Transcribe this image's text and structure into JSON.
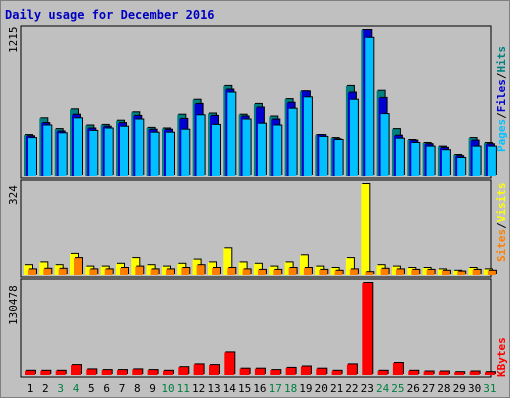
{
  "title": "Daily usage for December 2016",
  "colors": {
    "background": "#c0c0c0",
    "pages": "#00c0ff",
    "files": "#0000d0",
    "hits": "#008080",
    "visits": "#ffff00",
    "sites": "#ff8000",
    "kbytes": "#ff0000",
    "title": "#0000c0",
    "weekend_day": "#008040",
    "weekday_day": "#000000"
  },
  "legend": {
    "pages": "Pages",
    "files": "Files",
    "hits": "Hits",
    "visits": "Visits",
    "sites": "Sites",
    "kbytes": "KBytes",
    "sep": "/"
  },
  "chart_data": [
    {
      "type": "bar",
      "title": "Daily usage for December 2016",
      "ymax_label": "1215",
      "ylim": [
        0,
        1215
      ],
      "categories": [
        "1",
        "2",
        "3",
        "4",
        "5",
        "6",
        "7",
        "8",
        "9",
        "10",
        "11",
        "12",
        "13",
        "14",
        "15",
        "16",
        "17",
        "18",
        "19",
        "20",
        "21",
        "22",
        "23",
        "24",
        "25",
        "26",
        "27",
        "28",
        "29",
        "30",
        "31"
      ],
      "series": [
        {
          "name": "Hits",
          "values": [
            340,
            480,
            390,
            555,
            420,
            425,
            460,
            530,
            400,
            395,
            510,
            635,
            520,
            750,
            510,
            600,
            495,
            640,
            705,
            340,
            315,
            750,
            1215,
            710,
            390,
            300,
            275,
            245,
            175,
            315,
            275
          ]
        },
        {
          "name": "Files",
          "values": [
            330,
            440,
            370,
            510,
            395,
            410,
            440,
            500,
            385,
            385,
            475,
            600,
            500,
            720,
            495,
            570,
            470,
            610,
            705,
            340,
            305,
            695,
            1215,
            650,
            335,
            295,
            265,
            235,
            165,
            295,
            265
          ]
        },
        {
          "name": "Pages",
          "values": [
            315,
            420,
            355,
            480,
            375,
            395,
            410,
            470,
            360,
            360,
            385,
            505,
            425,
            695,
            470,
            435,
            420,
            560,
            655,
            325,
            300,
            635,
            1150,
            515,
            310,
            275,
            245,
            215,
            150,
            245,
            245
          ]
        }
      ],
      "ylabel": "Pages / Files / Hits"
    },
    {
      "type": "bar",
      "ymax_label": "324",
      "ylim": [
        0,
        324
      ],
      "categories": [
        "1",
        "2",
        "3",
        "4",
        "5",
        "6",
        "7",
        "8",
        "9",
        "10",
        "11",
        "12",
        "13",
        "14",
        "15",
        "16",
        "17",
        "18",
        "19",
        "20",
        "21",
        "22",
        "23",
        "24",
        "25",
        "26",
        "27",
        "28",
        "29",
        "30",
        "31"
      ],
      "series": [
        {
          "name": "Visits",
          "values": [
            35,
            45,
            35,
            75,
            30,
            30,
            40,
            60,
            35,
            30,
            40,
            55,
            45,
            95,
            45,
            40,
            30,
            45,
            70,
            30,
            25,
            60,
            324,
            35,
            30,
            25,
            25,
            20,
            15,
            25,
            20
          ]
        },
        {
          "name": "Sites",
          "values": [
            20,
            22,
            22,
            60,
            20,
            20,
            25,
            30,
            20,
            20,
            25,
            35,
            25,
            25,
            20,
            18,
            18,
            25,
            25,
            18,
            15,
            20,
            10,
            22,
            20,
            18,
            18,
            15,
            12,
            18,
            15
          ]
        }
      ],
      "ylabel": "Sites / Visits"
    },
    {
      "type": "bar",
      "ymax_label": "130478",
      "ylim": [
        0,
        130478
      ],
      "categories": [
        "1",
        "2",
        "3",
        "4",
        "5",
        "6",
        "7",
        "8",
        "9",
        "10",
        "11",
        "12",
        "13",
        "14",
        "15",
        "16",
        "17",
        "18",
        "19",
        "20",
        "21",
        "22",
        "23",
        "24",
        "25",
        "26",
        "27",
        "28",
        "29",
        "30",
        "31"
      ],
      "series": [
        {
          "name": "KBytes",
          "values": [
            6000,
            6000,
            6000,
            14000,
            8000,
            7000,
            7000,
            8000,
            7000,
            6000,
            11000,
            15000,
            14000,
            32000,
            9000,
            9000,
            7000,
            10000,
            12000,
            9000,
            6000,
            15000,
            130478,
            6000,
            17000,
            6000,
            5000,
            5000,
            4000,
            5000,
            4000
          ]
        }
      ],
      "ylabel": "KBytes"
    }
  ],
  "weekend_days": [
    "3",
    "4",
    "10",
    "11",
    "17",
    "18",
    "24",
    "25",
    "31"
  ]
}
